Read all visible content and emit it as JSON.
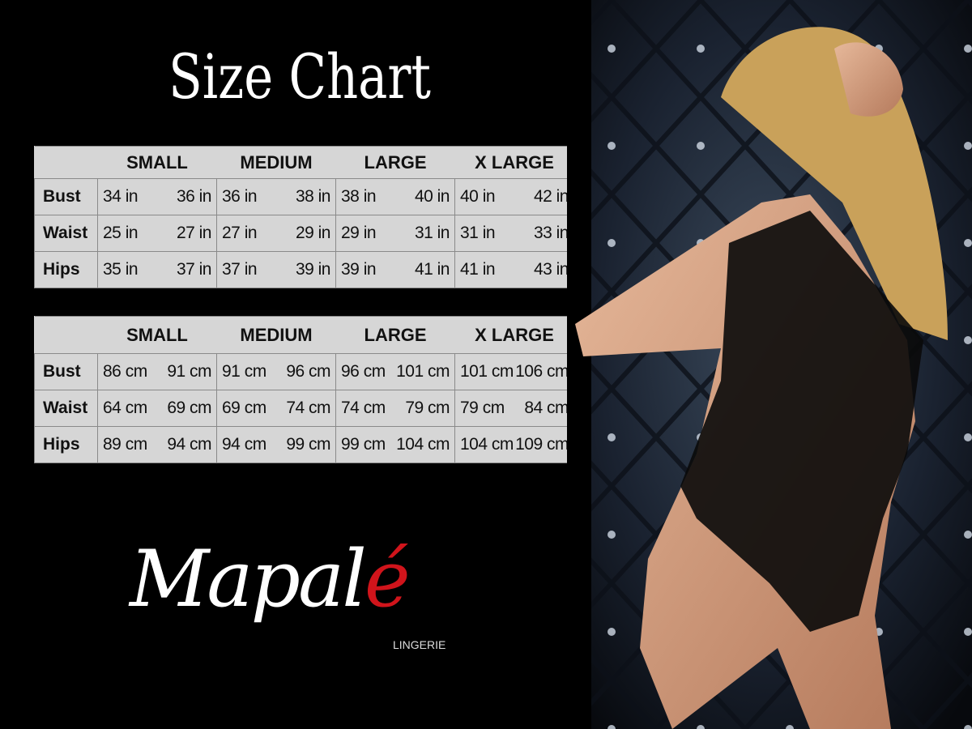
{
  "title": "Size Chart",
  "sizes": [
    "SMALL",
    "MEDIUM",
    "LARGE",
    "X LARGE"
  ],
  "inches": {
    "rows": [
      {
        "label": "Bust",
        "values": [
          "34 in",
          "36 in",
          "36 in",
          "38 in",
          "38 in",
          "40 in",
          "40 in",
          "42 in"
        ]
      },
      {
        "label": "Waist",
        "values": [
          "25 in",
          "27 in",
          "27 in",
          "29 in",
          "29 in",
          "31 in",
          "31 in",
          "33 in"
        ]
      },
      {
        "label": "Hips",
        "values": [
          "35 in",
          "37 in",
          "37 in",
          "39 in",
          "39 in",
          "41 in",
          "41 in",
          "43 in"
        ]
      }
    ]
  },
  "cm": {
    "rows": [
      {
        "label": "Bust",
        "values": [
          "86 cm",
          "91 cm",
          "91 cm",
          "96 cm",
          "96 cm",
          "101 cm",
          "101 cm",
          "106 cm"
        ]
      },
      {
        "label": "Waist",
        "values": [
          "64 cm",
          "69 cm",
          "69 cm",
          "74 cm",
          "74 cm",
          "79 cm",
          "79 cm",
          "84 cm"
        ]
      },
      {
        "label": "Hips",
        "values": [
          "89 cm",
          "94 cm",
          "94 cm",
          "99 cm",
          "99 cm",
          "104 cm",
          "104 cm",
          "109 cm"
        ]
      }
    ]
  },
  "logo": {
    "word_main": "Mapal",
    "word_accent": "é",
    "sub": "LINGERIE",
    "accent_color": "#d0141b"
  }
}
